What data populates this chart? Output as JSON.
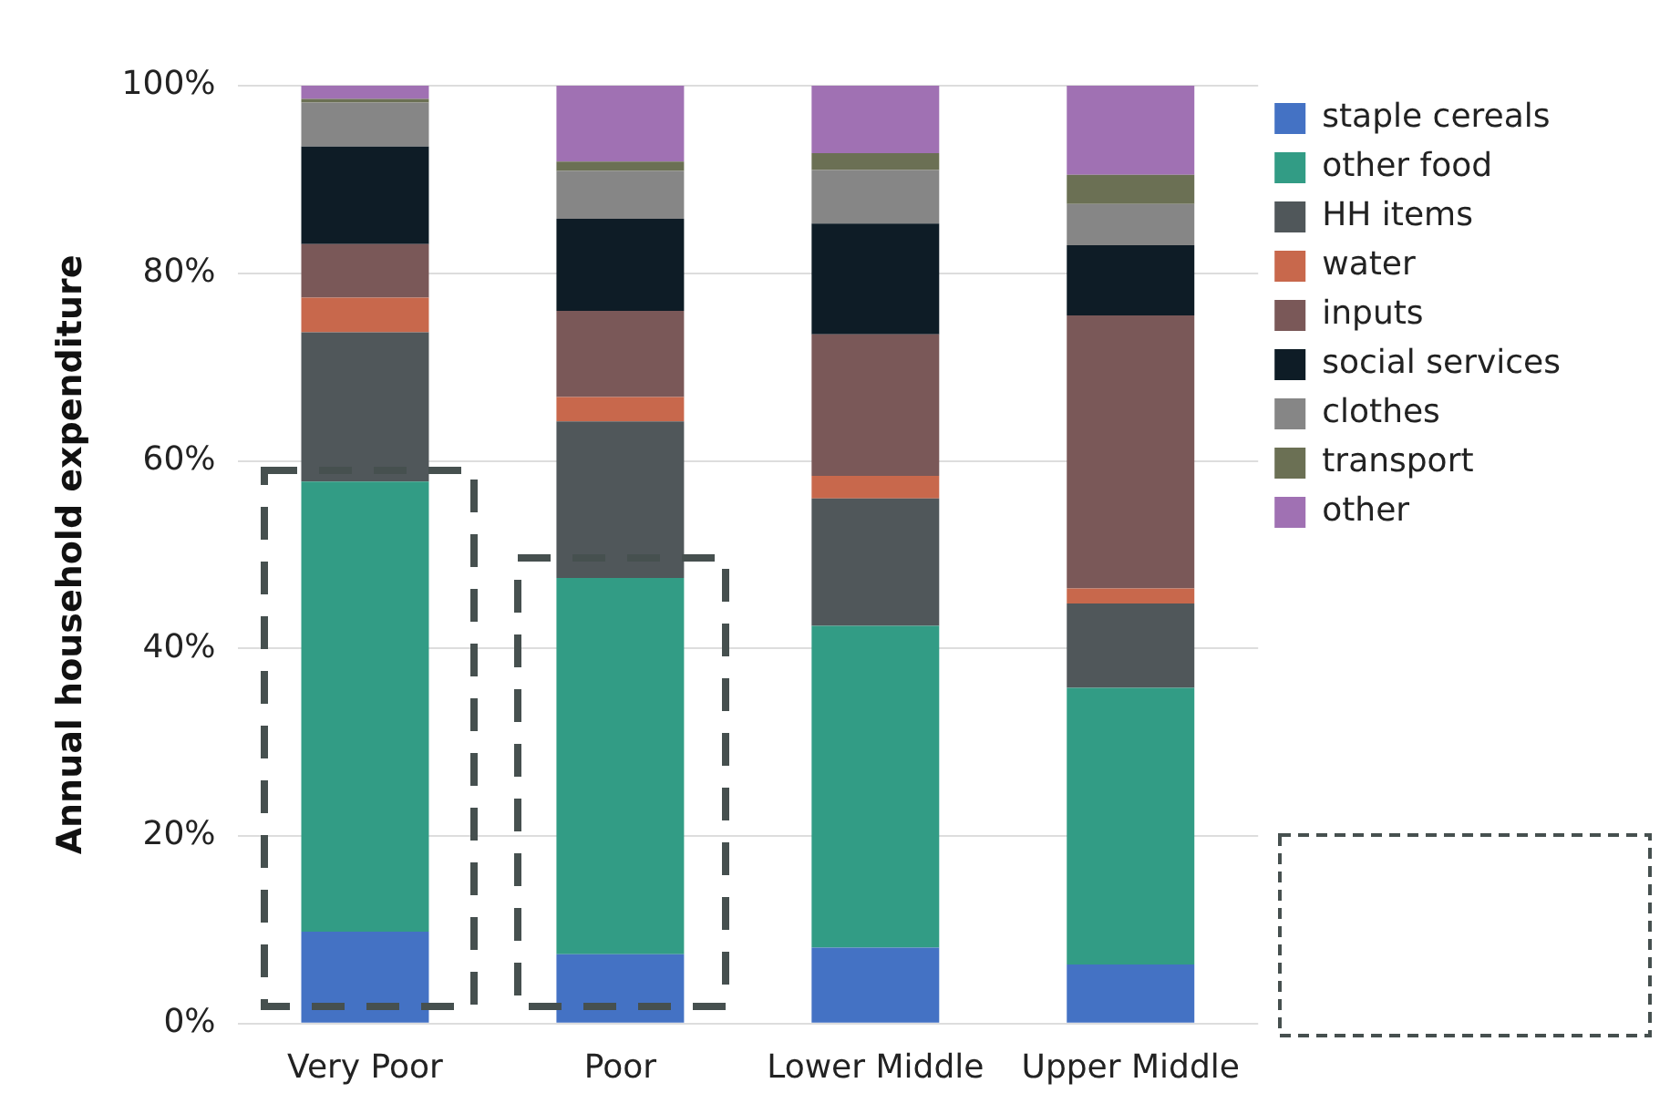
{
  "chart_data": {
    "type": "bar",
    "stacked": true,
    "ylabel": "Annual household expenditure",
    "categories": [
      "Very Poor",
      "Poor",
      "Lower Middle",
      "Upper Middle"
    ],
    "ylim": [
      0,
      100
    ],
    "yticks": [
      {
        "value": 0,
        "label": "0%"
      },
      {
        "value": 20,
        "label": "20%"
      },
      {
        "value": 40,
        "label": "40%"
      },
      {
        "value": 60,
        "label": "60%"
      },
      {
        "value": 80,
        "label": "80%"
      },
      {
        "value": 100,
        "label": "100%"
      }
    ],
    "grid": "y",
    "legend": "top right",
    "series": [
      {
        "name": "staple cereals",
        "color": "#4472c4",
        "values": [
          9.8,
          7.4,
          8.1,
          6.3
        ]
      },
      {
        "name": "other food",
        "color": "#329c85",
        "values": [
          48.0,
          40.1,
          34.3,
          29.5
        ]
      },
      {
        "name": "HH items",
        "color": "#50575a",
        "values": [
          15.9,
          16.7,
          13.6,
          9.0
        ]
      },
      {
        "name": "water",
        "color": "#c8684c",
        "values": [
          3.7,
          2.6,
          2.4,
          1.6
        ]
      },
      {
        "name": "inputs",
        "color": "#7a5858",
        "values": [
          5.7,
          9.2,
          15.1,
          29.1
        ]
      },
      {
        "name": "social services",
        "color": "#0e1c26",
        "values": [
          10.4,
          9.8,
          11.8,
          7.5
        ]
      },
      {
        "name": "clothes",
        "color": "#868686",
        "values": [
          4.7,
          5.1,
          5.7,
          4.4
        ]
      },
      {
        "name": "transport",
        "color": "#6b7054",
        "values": [
          0.4,
          1.0,
          1.8,
          3.1
        ]
      },
      {
        "name": "other",
        "color": "#a071b3",
        "values": [
          1.4,
          8.1,
          7.2,
          9.5
        ]
      }
    ]
  }
}
